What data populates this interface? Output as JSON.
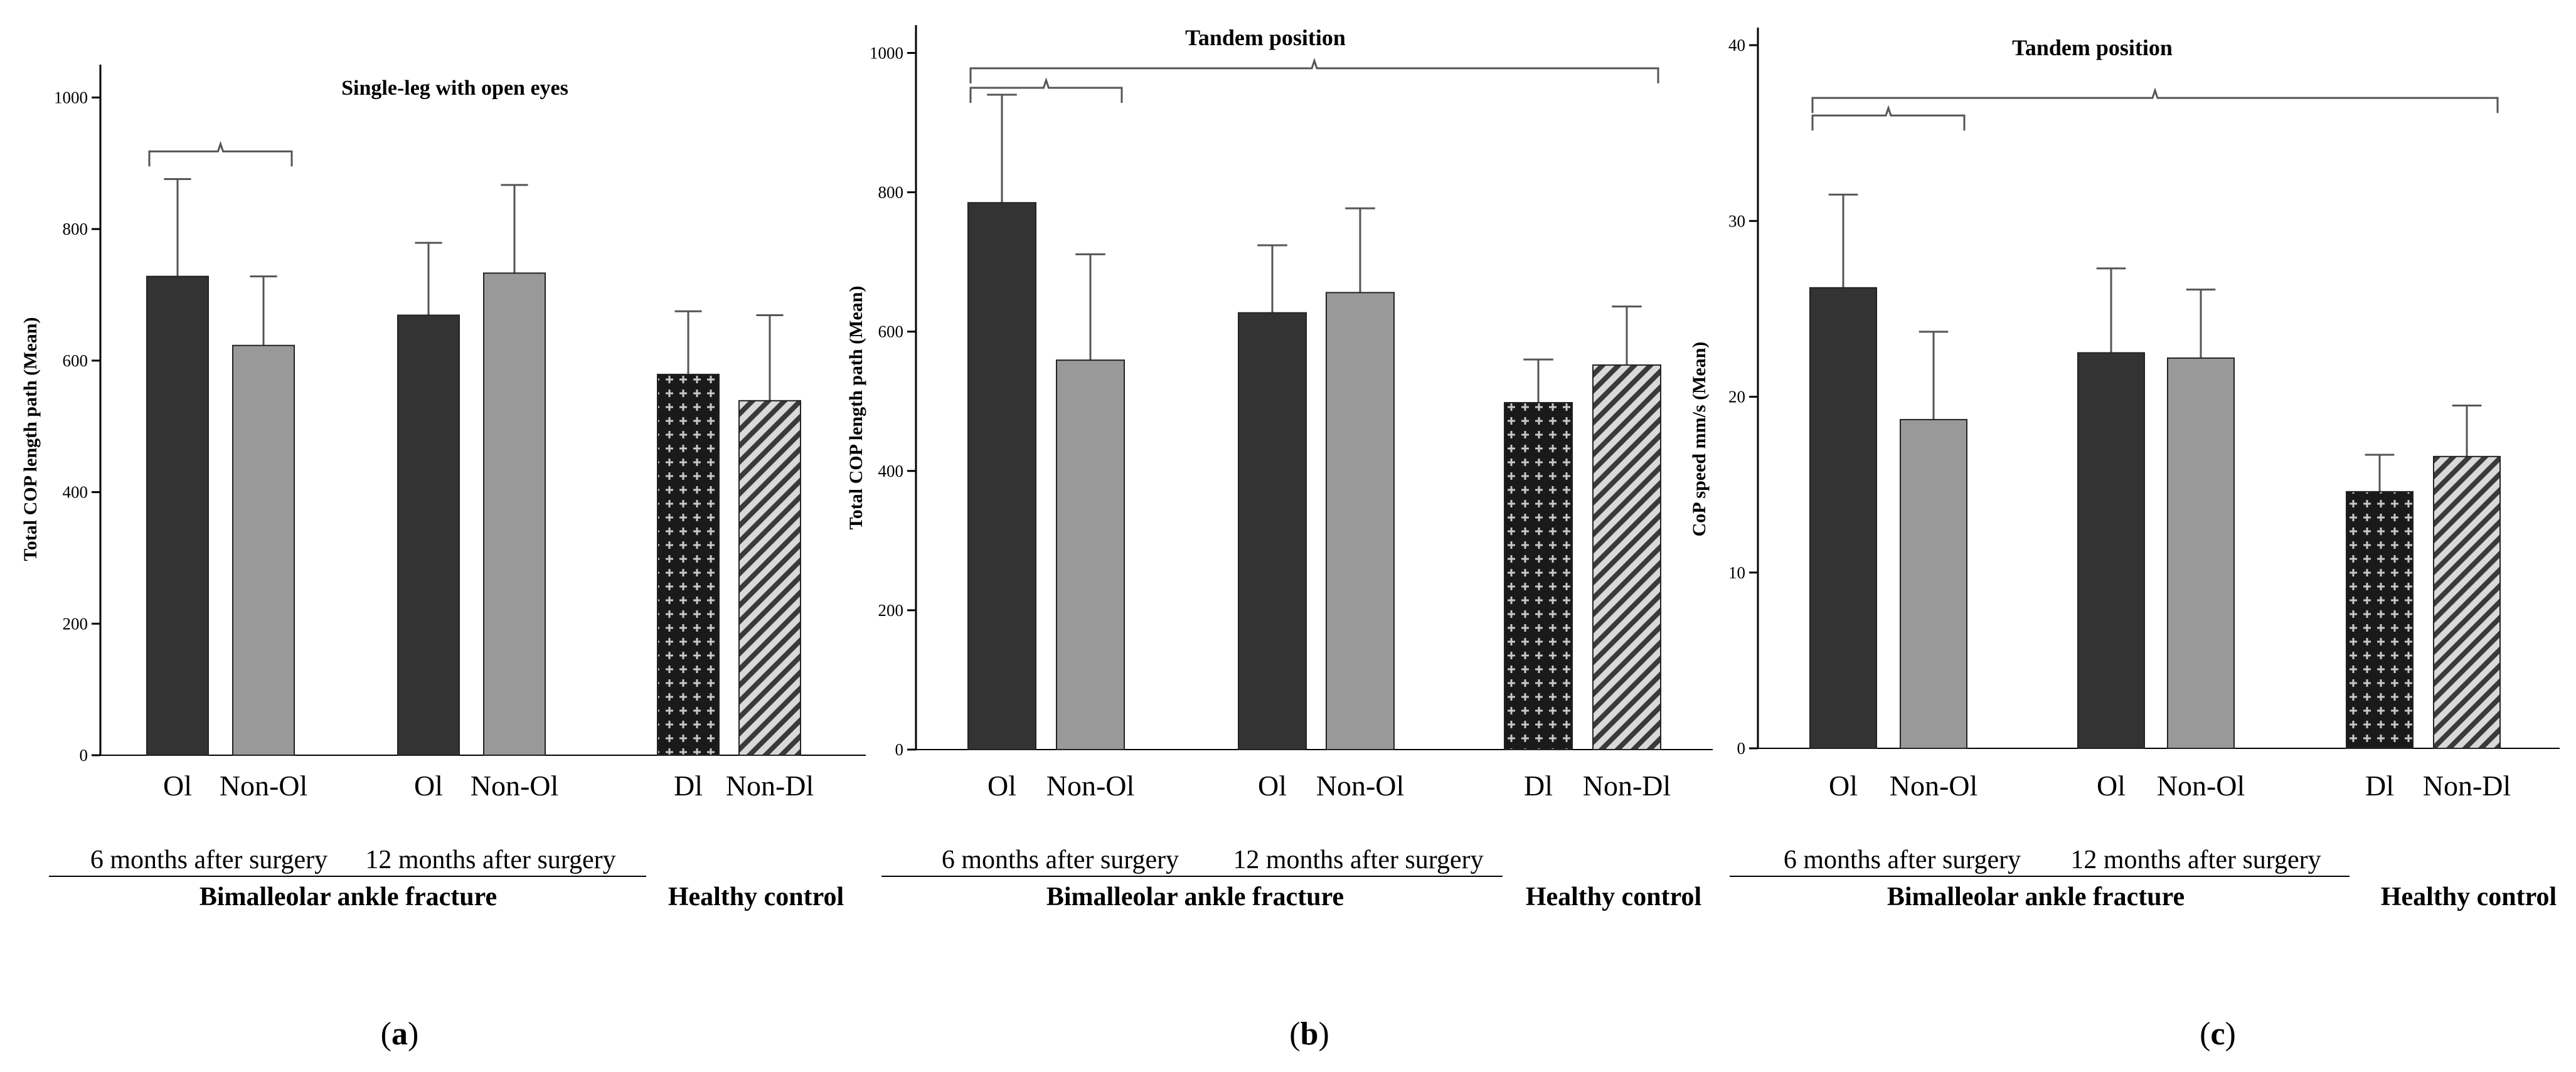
{
  "colors": {
    "dark": "#333333",
    "gray": "#999999",
    "axis": "#000000",
    "bracket": "#555555"
  },
  "chart_data": [
    {
      "type": "bar",
      "panel": "a",
      "title": "Single-leg with open eyes",
      "ylabel": "Total COP length path (Mean)",
      "ylim": [
        0,
        1050
      ],
      "yticks": [
        "0",
        "200",
        "400",
        "600",
        "800",
        "1000"
      ],
      "ytick_values": [
        0,
        200,
        400,
        600,
        800,
        1000
      ],
      "bars": [
        {
          "label": "Ol",
          "value": 728,
          "error": 148,
          "style": "dark"
        },
        {
          "label": "Non-Ol",
          "value": 623,
          "error": 105,
          "style": "gray"
        },
        {
          "label": "Ol",
          "value": 669,
          "error": 110,
          "style": "dark"
        },
        {
          "label": "Non-Ol",
          "value": 733,
          "error": 134,
          "style": "gray"
        },
        {
          "label": "Dl",
          "value": 579,
          "error": 96,
          "style": "cross"
        },
        {
          "label": "Non-Dl",
          "value": 539,
          "error": 130,
          "style": "diag"
        }
      ],
      "brackets": [
        {
          "from": 0,
          "to": 1,
          "y": 918
        }
      ],
      "group_labels": [
        "6 months after surgery",
        "12 months after surgery"
      ],
      "super_label": "Bimalleolar ankle fracture",
      "control_label": "Healthy control"
    },
    {
      "type": "bar",
      "panel": "b",
      "title": "Tandem position",
      "ylabel": "Total COP length path (Mean)",
      "ylim": [
        0,
        1040
      ],
      "yticks": [
        "0",
        "200",
        "400",
        "600",
        "800",
        "1000"
      ],
      "ytick_values": [
        0,
        200,
        400,
        600,
        800,
        1000
      ],
      "bars": [
        {
          "label": "Ol",
          "value": 785,
          "error": 155,
          "style": "dark"
        },
        {
          "label": "Non-Ol",
          "value": 559,
          "error": 152,
          "style": "gray"
        },
        {
          "label": "Ol",
          "value": 627,
          "error": 97,
          "style": "dark"
        },
        {
          "label": "Non-Ol",
          "value": 656,
          "error": 121,
          "style": "gray"
        },
        {
          "label": "Dl",
          "value": 498,
          "error": 62,
          "style": "cross"
        },
        {
          "label": "Non-Dl",
          "value": 552,
          "error": 84,
          "style": "diag"
        }
      ],
      "brackets": [
        {
          "from": 0,
          "to": 5,
          "y": 978
        },
        {
          "from": 0,
          "to": 1,
          "y": 950
        }
      ],
      "group_labels": [
        "6 months after surgery",
        "12 months after surgery"
      ],
      "super_label": "Bimalleolar ankle fracture",
      "control_label": "Healthy control"
    },
    {
      "type": "bar",
      "panel": "c",
      "title": "Tandem position",
      "ylabel": "CoP speed mm/s (Mean)",
      "ylim": [
        0,
        41
      ],
      "yticks": [
        "0",
        "10",
        "20",
        "30",
        "40"
      ],
      "ytick_values": [
        0,
        10,
        20,
        30,
        40
      ],
      "bars": [
        {
          "label": "Ol",
          "value": 26.2,
          "error": 5.3,
          "style": "dark"
        },
        {
          "label": "Non-Ol",
          "value": 18.7,
          "error": 5.0,
          "style": "gray"
        },
        {
          "label": "Ol",
          "value": 22.5,
          "error": 4.8,
          "style": "dark"
        },
        {
          "label": "Non-Ol",
          "value": 22.2,
          "error": 3.9,
          "style": "gray"
        },
        {
          "label": "Dl",
          "value": 14.6,
          "error": 2.1,
          "style": "cross"
        },
        {
          "label": "Non-Dl",
          "value": 16.6,
          "error": 2.9,
          "style": "diag"
        }
      ],
      "brackets": [
        {
          "from": 0,
          "to": 5,
          "y": 37.0
        },
        {
          "from": 0,
          "to": 1,
          "y": 36.0
        }
      ],
      "group_labels": [
        "6 months after surgery",
        "12 months after surgery"
      ],
      "super_label": "Bimalleolar ankle fracture",
      "control_label": "Healthy control"
    }
  ],
  "panel_labels": [
    {
      "open": "(",
      "letter": "a",
      "close": ")"
    },
    {
      "open": "(",
      "letter": "b",
      "close": ")"
    },
    {
      "open": "(",
      "letter": "c",
      "close": ")"
    }
  ]
}
